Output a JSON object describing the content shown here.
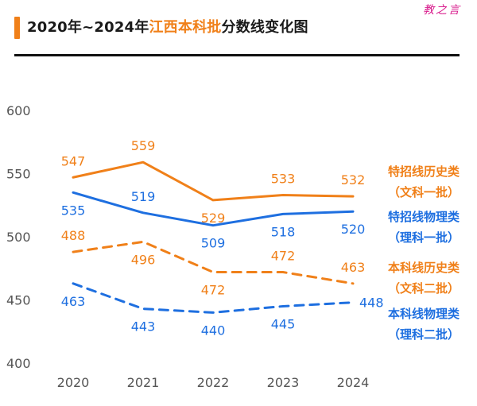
{
  "header": {
    "title_prefix": "2020年~2024年",
    "title_highlight": "江西本科批",
    "title_suffix": "分数线变化图",
    "brand": "教之言"
  },
  "chart_data": {
    "type": "line",
    "title": "2020年~2024年江西本科批分数线变化图",
    "categories": [
      "2020",
      "2021",
      "2022",
      "2023",
      "2024"
    ],
    "ylim": [
      400,
      600
    ],
    "yticks": [
      400,
      450,
      500,
      550,
      600
    ],
    "grid": false,
    "legend_position": "right",
    "series": [
      {
        "name_line1": "特招线历史类",
        "name_line2": "（文科一批）",
        "values": [
          547,
          559,
          529,
          533,
          532
        ],
        "color": "#f08019",
        "dash": false,
        "label_pos": [
          "above",
          "above",
          "below",
          "above",
          "above"
        ]
      },
      {
        "name_line1": "特招线物理类",
        "name_line2": "（理科一批）",
        "values": [
          535,
          519,
          509,
          518,
          520
        ],
        "color": "#1e6fe0",
        "dash": false,
        "label_pos": [
          "below",
          "above",
          "below",
          "below",
          "below"
        ]
      },
      {
        "name_line1": "本科线历史类",
        "name_line2": "（文科二批）",
        "values": [
          488,
          496,
          472,
          472,
          463
        ],
        "color": "#f08019",
        "dash": true,
        "label_pos": [
          "above",
          "below",
          "below",
          "above",
          "above"
        ]
      },
      {
        "name_line1": "本科线物理类",
        "name_line2": "（理科二批）",
        "values": [
          463,
          443,
          440,
          445,
          448
        ],
        "color": "#1e6fe0",
        "dash": true,
        "label_pos": [
          "below",
          "below",
          "below",
          "below",
          "right"
        ]
      }
    ]
  }
}
